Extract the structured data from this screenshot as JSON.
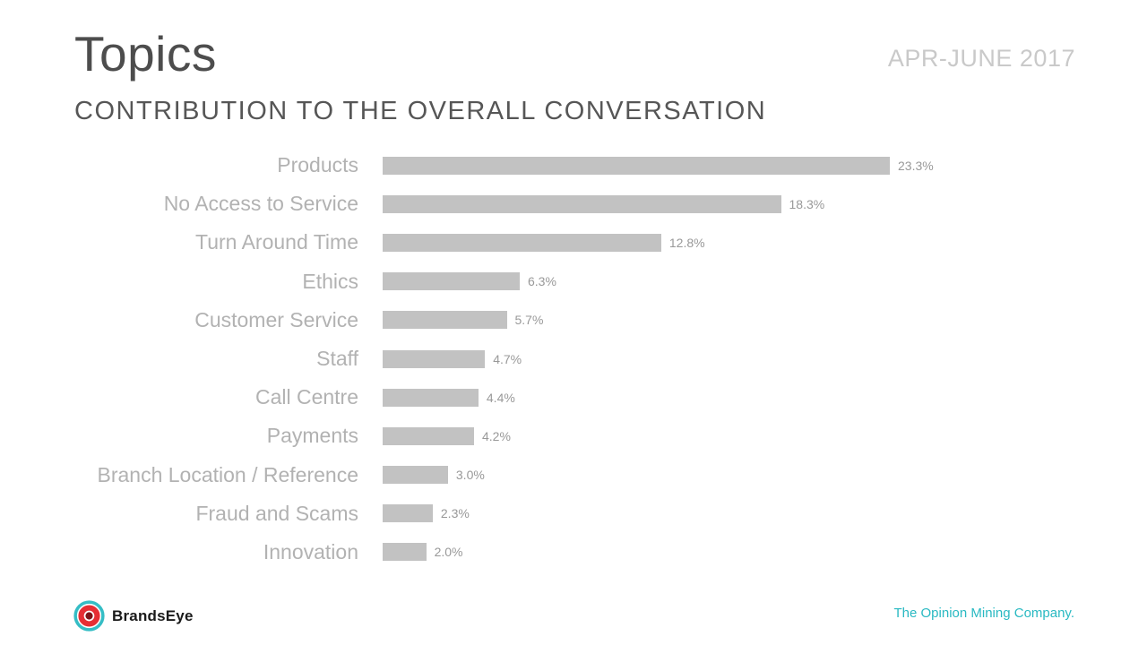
{
  "slide": {
    "title": "Topics",
    "period": "APR-JUNE 2017",
    "subtitle": "CONTRIBUTION TO THE OVERALL CONVERSATION"
  },
  "chart_data": {
    "type": "bar",
    "orientation": "horizontal",
    "title": "Topics",
    "subtitle": "CONTRIBUTION TO THE OVERALL CONVERSATION",
    "categories": [
      "Products",
      "No Access to Service",
      "Turn Around Time",
      "Ethics",
      "Customer Service",
      "Staff",
      "Call Centre",
      "Payments",
      "Branch Location / Reference",
      "Fraud and Scams",
      "Innovation"
    ],
    "values": [
      23.3,
      18.3,
      12.8,
      6.3,
      5.7,
      4.7,
      4.4,
      4.2,
      3.0,
      2.3,
      2.0
    ],
    "value_labels": [
      "23.3%",
      "18.3%",
      "12.8%",
      "6.3%",
      "5.7%",
      "4.7%",
      "4.4%",
      "4.2%",
      "3.0%",
      "2.3%",
      "2.0%"
    ],
    "unit": "%",
    "xlim": [
      0,
      25
    ],
    "grid": false,
    "legend": false,
    "bar_color": "#c2c2c2",
    "category_label_color": "#b2b2b2",
    "value_label_color": "#999999"
  },
  "footer": {
    "brand_name": "BrandsEye",
    "tagline": "The Opinion Mining Company.",
    "tagline_color": "#29b9c2",
    "logo": {
      "icon": "bullseye-icon",
      "outer_ring_color": "#35bdc5",
      "mid_ring_color": "#e62e34",
      "center_dot_color": "#7d1418"
    }
  }
}
